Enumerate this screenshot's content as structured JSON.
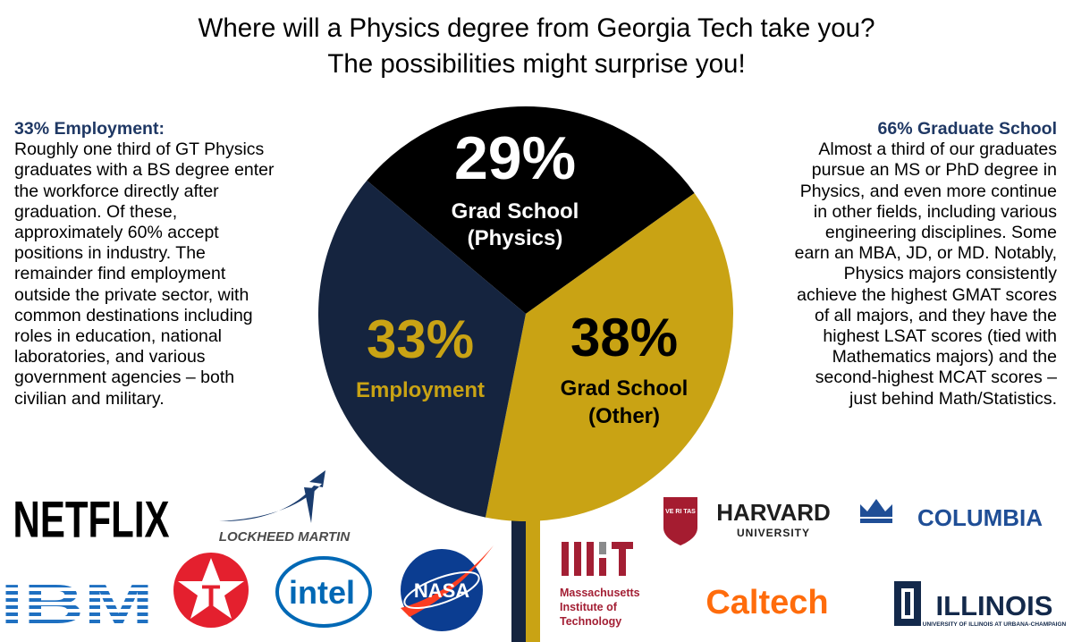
{
  "title": {
    "line1": "Where will a Physics degree from Georgia Tech take you?",
    "line2": "The possibilities might surprise you!"
  },
  "left_text": {
    "heading": "33% Employment:",
    "lines": [
      "Roughly one third of GT Physics",
      "graduates with a BS degree enter",
      "the workforce directly after",
      "graduation. Of these,",
      "approximately 60% accept",
      "positions in industry. The",
      "remainder find employment",
      "outside the private sector, with",
      "common destinations including",
      "roles in education, national",
      "laboratories, and various",
      "government agencies – both",
      "civilian and military."
    ]
  },
  "right_text": {
    "heading": "66% Graduate School",
    "lines": [
      "Almost a third of our graduates",
      "pursue an MS or PhD degree in",
      "Physics, and even more continue",
      "in other fields, including various",
      "engineering disciplines. Some",
      "earn an MBA, JD, or MD. Notably,",
      "Physics majors consistently",
      "achieve the highest GMAT scores",
      "of all majors, and they have the",
      "highest LSAT scores (tied with",
      "Mathematics majors) and the",
      "second-highest MCAT scores –",
      "just behind Math/Statistics."
    ]
  },
  "chart_data": {
    "type": "pie",
    "slices": [
      {
        "percent_label": "29%",
        "value": 29,
        "label_lines": [
          "Grad School",
          "(Physics)"
        ],
        "color": "#000000",
        "text_color": "#ffffff"
      },
      {
        "percent_label": "38%",
        "value": 38,
        "label_lines": [
          "Grad School",
          "(Other)"
        ],
        "color": "#c9a314",
        "text_color": "#000000"
      },
      {
        "percent_label": "33%",
        "value": 33,
        "label_lines": [
          "Employment"
        ],
        "color": "#15243f",
        "text_color": "#c9a314"
      }
    ],
    "stem_colors": {
      "left": "#15243f",
      "right": "#c9a314"
    }
  },
  "logos": {
    "netflix": "NETFLIX",
    "lockheed": "LOCKHEED MARTIN",
    "ibm": "IBM",
    "texaco": "T",
    "intel": "intel",
    "nasa": "NASA",
    "mit_lines": [
      "Massachusetts",
      "Institute of",
      "Technology"
    ],
    "harvard": "HARVARD",
    "harvard_sub": "UNIVERSITY",
    "harvard_shield": "VE RI TAS",
    "columbia": "COLUMBIA",
    "caltech": "Caltech",
    "illinois": "ILLINOIS",
    "illinois_sub": "UNIVERSITY OF ILLINOIS AT URBANA-CHAMPAIGN",
    "colors": {
      "netflix": "#e50914",
      "ibm": "#1f70c1",
      "texaco": "#e4202e",
      "intel": "#0068b5",
      "nasa": "#0b3d91",
      "mit": "#a31f34",
      "harvard": "#a51c30",
      "columbia": "#1f4e96",
      "caltech": "#ff6c0c",
      "illinois": "#13294b"
    }
  }
}
